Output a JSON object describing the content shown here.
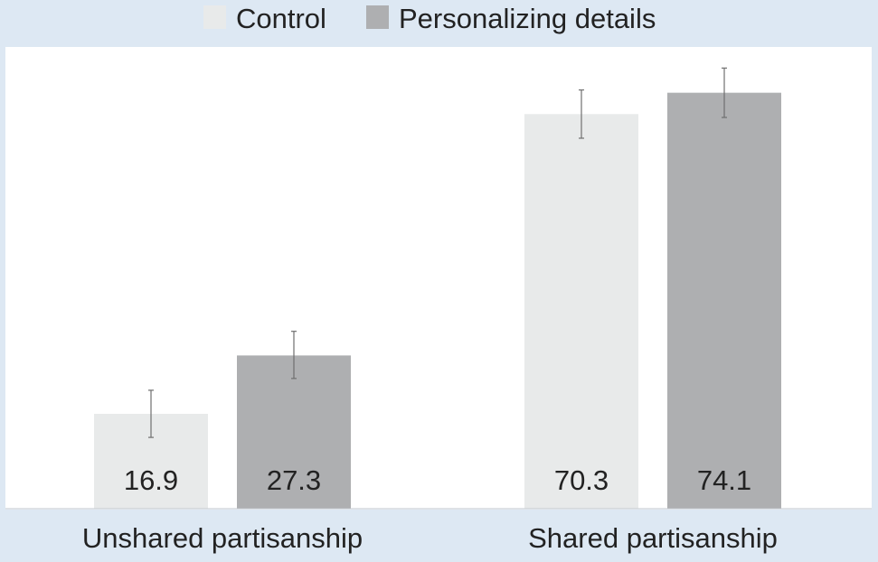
{
  "chart_data": {
    "type": "bar",
    "categories": [
      "Unshared partisanship",
      "Shared partisanship"
    ],
    "series": [
      {
        "name": "Control",
        "color": "#e8eaea",
        "values": [
          16.9,
          70.3
        ],
        "errors": [
          [
            12.7,
            21.1
          ],
          [
            66.0,
            74.6
          ]
        ]
      },
      {
        "name": "Personalizing details",
        "color": "#aeafb1",
        "values": [
          27.3,
          74.1
        ],
        "errors": [
          [
            23.2,
            31.6
          ],
          [
            69.7,
            78.5
          ]
        ]
      }
    ],
    "ylim": [
      0,
      80
    ],
    "legend_position": "top",
    "grid": false,
    "data_labels": "inside-bottom"
  }
}
